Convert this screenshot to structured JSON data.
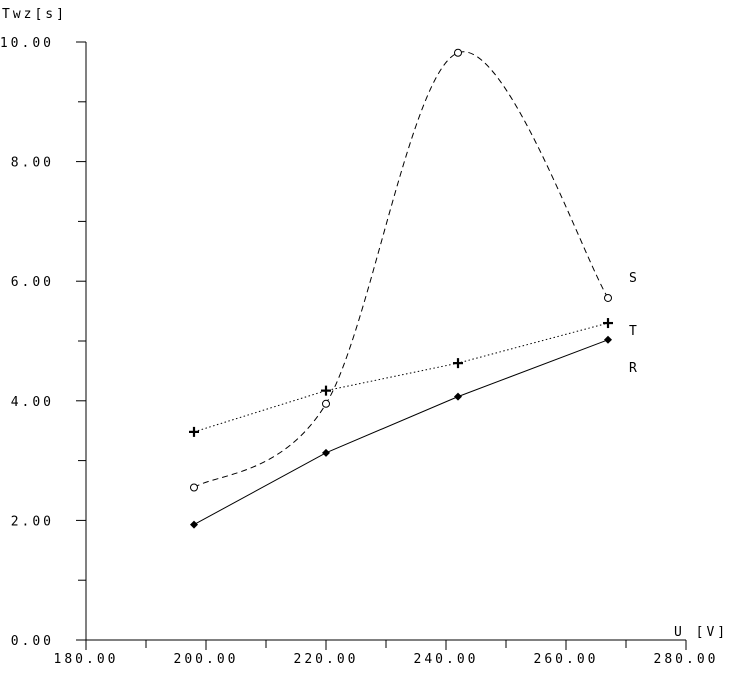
{
  "chart_data": {
    "type": "line",
    "title": "",
    "xlabel": "U [V]",
    "ylabel": "Twz[s]",
    "xlim": [
      180,
      280
    ],
    "ylim": [
      0,
      10
    ],
    "x_ticks": [
      "180.00",
      "200.00",
      "220.00",
      "240.00",
      "260.00",
      "280.00"
    ],
    "y_ticks": [
      "0.00",
      "2.00",
      "4.00",
      "6.00",
      "8.00",
      "10.00"
    ],
    "grid": false,
    "series": [
      {
        "name": "S",
        "style": "dashed",
        "marker": "circle",
        "color": "#000000",
        "x": [
          198,
          220,
          242,
          267
        ],
        "y": [
          2.55,
          3.95,
          9.82,
          5.72
        ]
      },
      {
        "name": "T",
        "style": "dotted",
        "marker": "plus",
        "color": "#000000",
        "x": [
          198,
          220,
          242,
          267
        ],
        "y": [
          3.48,
          4.17,
          4.63,
          5.3
        ]
      },
      {
        "name": "R",
        "style": "solid",
        "marker": "diamond",
        "color": "#000000",
        "x": [
          198,
          220,
          242,
          267
        ],
        "y": [
          1.93,
          3.13,
          4.07,
          5.02
        ]
      }
    ]
  }
}
